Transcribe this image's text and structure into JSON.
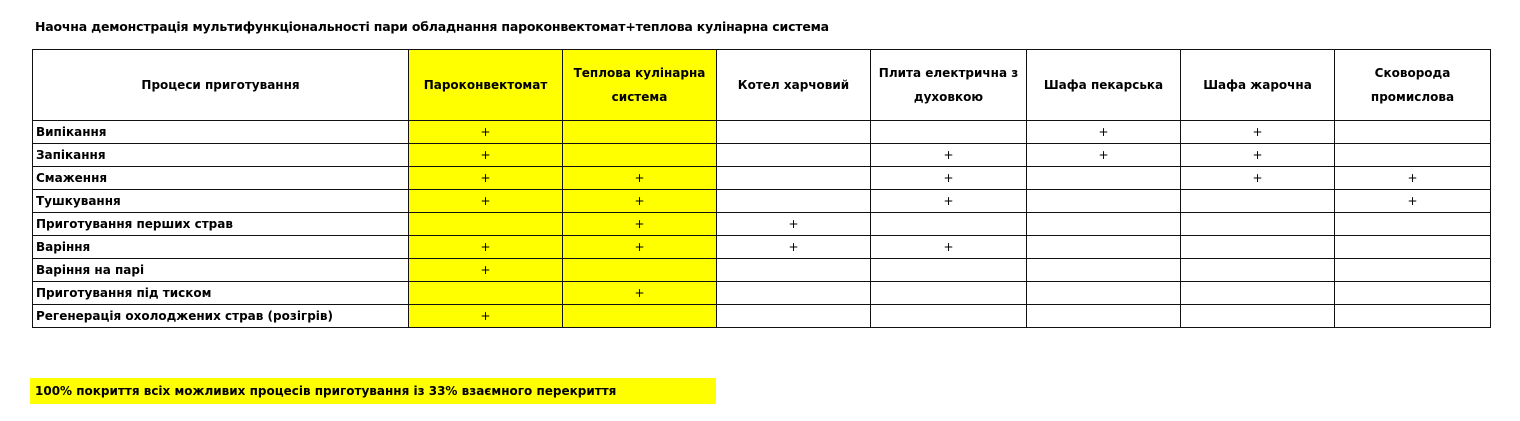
{
  "title": "Наочна демонстрація мультифункціональності пари обладнання пароконвектомат+теплова кулінарна система",
  "table": {
    "headers": [
      "Процеси приготування",
      "Пароконвектомат",
      "Теплова кулінарна система",
      "Котел харчовий",
      "Плита електрична з духовкою",
      "Шафа пекарська",
      "Шафа жарочна",
      "Сковорода промислова"
    ],
    "highlighted_columns": [
      1,
      2
    ],
    "highlight_color": "#ffff00",
    "rows": [
      {
        "process": "Випікання",
        "marks": [
          "+",
          "",
          "",
          "",
          "+",
          "+",
          ""
        ]
      },
      {
        "process": "Запікання",
        "marks": [
          "+",
          "",
          "",
          "+",
          "+",
          "+",
          ""
        ]
      },
      {
        "process": "Смаження",
        "marks": [
          "+",
          "+",
          "",
          "+",
          "",
          "+",
          "+"
        ]
      },
      {
        "process": "Тушкування",
        "marks": [
          "+",
          "+",
          "",
          "+",
          "",
          "",
          "+"
        ]
      },
      {
        "process": "Приготування перших страв",
        "marks": [
          "",
          "+",
          "+",
          "",
          "",
          "",
          ""
        ]
      },
      {
        "process": "Варіння",
        "marks": [
          "+",
          "+",
          "+",
          "+",
          "",
          "",
          ""
        ]
      },
      {
        "process": "Варіння на парі",
        "marks": [
          "+",
          "",
          "",
          "",
          "",
          "",
          ""
        ]
      },
      {
        "process": "Приготування під тиском",
        "marks": [
          "",
          "+",
          "",
          "",
          "",
          "",
          ""
        ]
      },
      {
        "process": "Регенерація охолоджених страв (розігрів)",
        "marks": [
          "+",
          "",
          "",
          "",
          "",
          "",
          ""
        ]
      }
    ]
  },
  "note": "100% покриття всіх можливих процесів приготування із 33% взаємного перекриття"
}
